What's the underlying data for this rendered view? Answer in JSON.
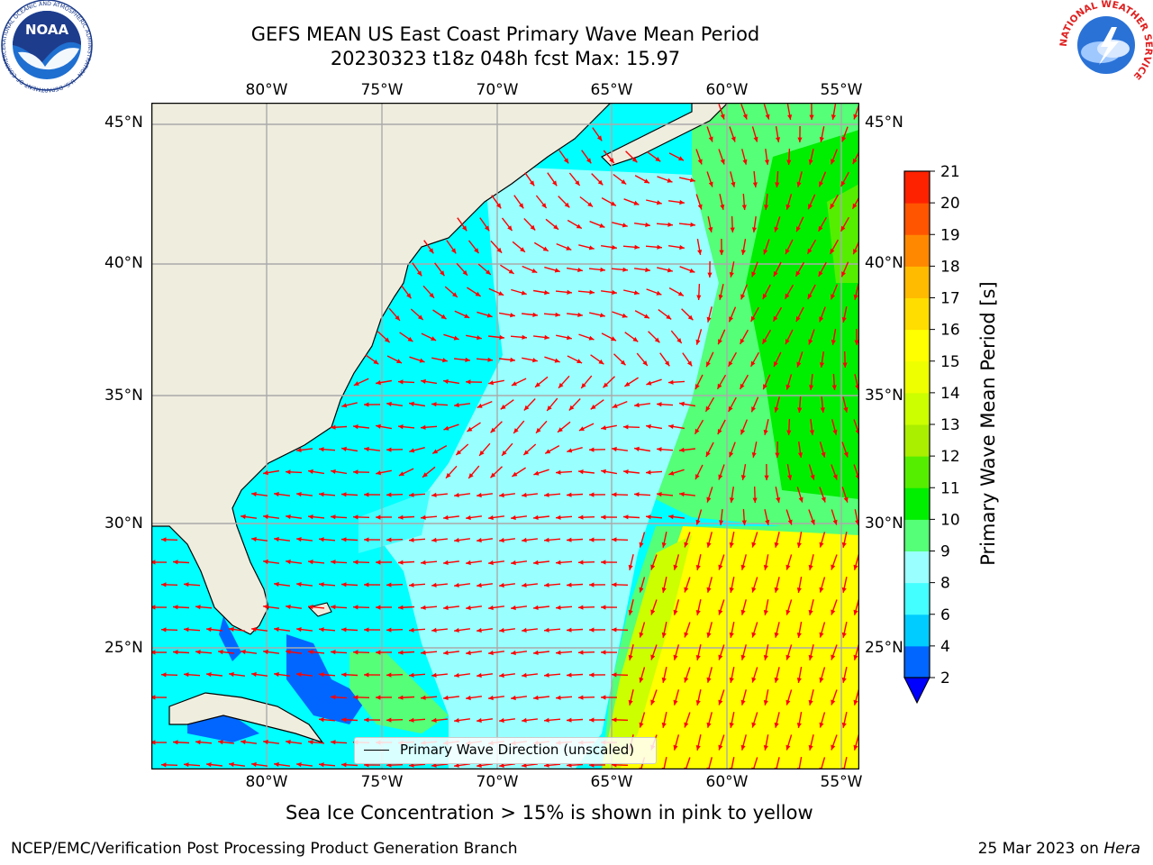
{
  "header": {
    "title_line1": "GEFS MEAN US East Coast Primary Wave Mean Period",
    "title_line2": "20230323 t18z 048h fcst   Max: 15.97"
  },
  "map": {
    "lon_labels": [
      "80°W",
      "75°W",
      "70°W",
      "65°W",
      "60°W",
      "55°W"
    ],
    "lat_labels": [
      "45°N",
      "40°N",
      "35°N",
      "30°N",
      "25°N"
    ],
    "lon_range": [
      -85,
      -54
    ],
    "lat_range": [
      20,
      46
    ],
    "grid": true,
    "arrow_color": "#ff0000",
    "land_color": "#efedde"
  },
  "legend": {
    "label": "Primary Wave Direction (unscaled)"
  },
  "colorbar": {
    "label": "Primary Wave Mean Period [s]",
    "ticks": [
      "2",
      "4",
      "6",
      "8",
      "9",
      "10",
      "11",
      "12",
      "13",
      "14",
      "15",
      "16",
      "17",
      "18",
      "19",
      "20",
      "21"
    ],
    "colors": [
      "#0066ff",
      "#00ccff",
      "#44ffff",
      "#99ffff",
      "#55ff77",
      "#00ee00",
      "#55ee00",
      "#aaee00",
      "#ccff00",
      "#eeff00",
      "#ffff00",
      "#ffdd00",
      "#ffbb00",
      "#ff8800",
      "#ff5500",
      "#ff2200"
    ],
    "under_color": "#0000ff"
  },
  "notes": {
    "sea_ice": "Sea Ice Concentration > 15% is shown in pink to yellow"
  },
  "footer": {
    "left": "NCEP/EMC/Verification Post Processing Product Generation Branch",
    "right_date": "25 Mar 2023 on ",
    "right_host": "Hera"
  },
  "logos": {
    "left": "NOAA",
    "left_ring": "NATIONAL OCEANIC AND ATMOSPHERIC ADMINISTRATION · U.S. DEPARTMENT OF COMMERCE",
    "right_ring": "NATIONAL WEATHER SERVICE"
  },
  "chart_data": {
    "type": "heatmap",
    "title": "GEFS MEAN US East Coast Primary Wave Mean Period",
    "subtitle": "20230323 t18z 048h fcst   Max: 15.97",
    "variable": "Primary Wave Mean Period [s]",
    "max": 15.97,
    "colorbar_range": [
      2,
      21
    ],
    "regions": [
      {
        "area": "Gulf of Maine / shelf",
        "period_s_approx": 6
      },
      {
        "area": "Mid-Atlantic and Southeast shelf",
        "period_s_approx": 6
      },
      {
        "area": "Offshore 65-70W",
        "period_s_approx": 8
      },
      {
        "area": "East of 62W, north of 30N",
        "period_s_approx": 10
      },
      {
        "area": "Southeast of 65W, south of 30N",
        "period_s_approx": 15
      }
    ]
  }
}
